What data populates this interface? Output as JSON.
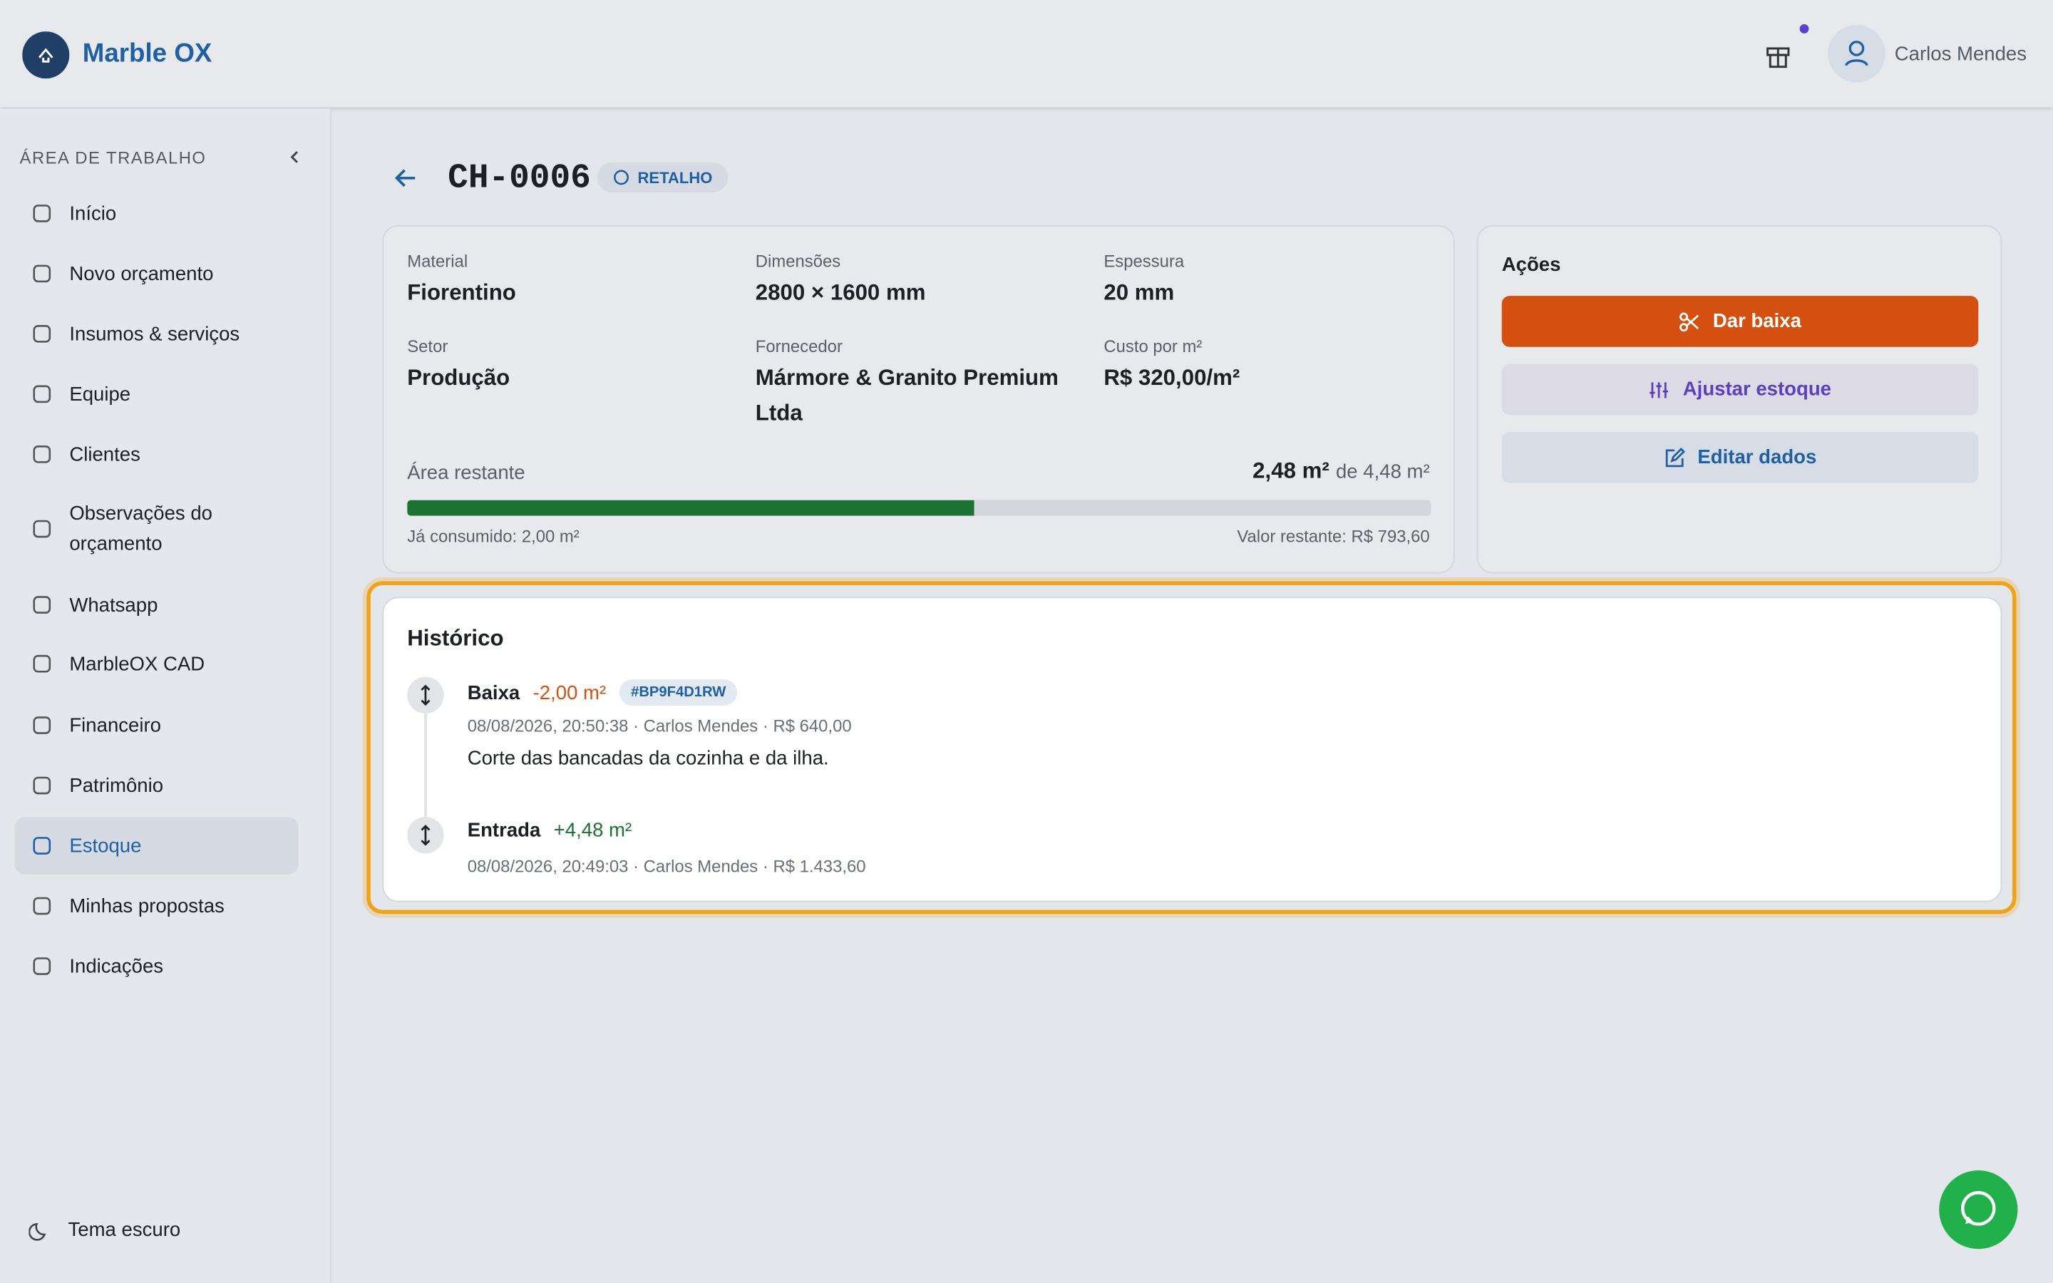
{
  "header": {
    "brand": "Marble OX",
    "user": "Carlos Mendes"
  },
  "sidebar": {
    "section": "ÁREA DE TRABALHO",
    "items": [
      {
        "label": "Início"
      },
      {
        "label": "Novo orçamento"
      },
      {
        "label": "Insumos & serviços"
      },
      {
        "label": "Equipe"
      },
      {
        "label": "Clientes"
      },
      {
        "label": "Observações do orçamento"
      },
      {
        "label": "Whatsapp"
      },
      {
        "label": "MarbleOX CAD"
      },
      {
        "label": "Financeiro"
      },
      {
        "label": "Patrimônio"
      },
      {
        "label": "Estoque",
        "active": true
      },
      {
        "label": "Minhas propostas"
      },
      {
        "label": "Indicações"
      }
    ],
    "theme": "Tema escuro"
  },
  "page": {
    "title": "CH-0006",
    "badge": "RETALHO"
  },
  "details": {
    "fields": [
      {
        "label": "Material",
        "value": "Fiorentino"
      },
      {
        "label": "Dimensões",
        "value": "2800 × 1600 mm"
      },
      {
        "label": "Espessura",
        "value": "20 mm"
      },
      {
        "label": "Setor",
        "value": "Produção"
      },
      {
        "label": "Fornecedor",
        "value": "Mármore & Granito Premium Ltda"
      },
      {
        "label": "Custo por m²",
        "value": "R$ 320,00/m²"
      }
    ],
    "area_label": "Área restante",
    "remaining_area": {
      "value": 2.48,
      "label": "2,48 m²"
    },
    "total_area": {
      "value": 4.48,
      "label": "de 4,48 m²"
    },
    "consumed": "Já consumido: 2,00 m²",
    "remaining_value": "Valor restante: R$ 793,60"
  },
  "actions": {
    "title": "Ações",
    "buttons": [
      "Dar baixa",
      "Ajustar estoque",
      "Editar dados"
    ]
  },
  "history": {
    "title": "Histórico",
    "entries": [
      {
        "type": "Baixa",
        "amount": "-2,00 m²",
        "tag": "#BP9F4D1RW",
        "meta": "08/08/2026, 20:50:38 · Carlos Mendes · R$ 640,00",
        "note": "Corte das bancadas da cozinha e da ilha."
      },
      {
        "type": "Entrada",
        "amount": "+4,48 m²",
        "meta": "08/08/2026, 20:49:03 · Carlos Mendes · R$ 1.433,60"
      }
    ]
  }
}
